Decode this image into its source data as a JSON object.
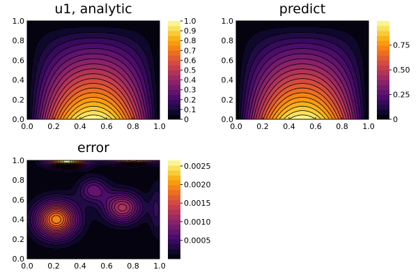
{
  "chart_data": [
    {
      "type": "heatmap",
      "id": "analytic",
      "title": "u1, analytic",
      "field": "analytic",
      "xlim": [
        0,
        1
      ],
      "ylim": [
        0,
        1
      ],
      "xticks": [
        "0.0",
        "0.2",
        "0.4",
        "0.6",
        "0.8",
        "1.0"
      ],
      "yticks": [
        "0.0",
        "0.2",
        "0.4",
        "0.6",
        "0.8",
        "1.0"
      ],
      "clim": [
        0,
        1
      ],
      "colorbar_ticks": [
        {
          "value": 0,
          "label": "0"
        },
        {
          "value": 0.1,
          "label": "0.1"
        },
        {
          "value": 0.2,
          "label": "0.2"
        },
        {
          "value": 0.3,
          "label": "0.3"
        },
        {
          "value": 0.4,
          "label": "0.4"
        },
        {
          "value": 0.5,
          "label": "0.5"
        },
        {
          "value": 0.6,
          "label": "0.6"
        },
        {
          "value": 0.7,
          "label": "0.7"
        },
        {
          "value": 0.8,
          "label": "0.8"
        },
        {
          "value": 0.9,
          "label": "0.9"
        },
        {
          "value": 1.0,
          "label": "1.0"
        }
      ],
      "levels": 20
    },
    {
      "type": "heatmap",
      "id": "predict",
      "title": "predict",
      "field": "predict",
      "xlim": [
        0,
        1
      ],
      "ylim": [
        0,
        1
      ],
      "xticks": [
        "0.0",
        "0.2",
        "0.4",
        "0.6",
        "0.8",
        "1.0"
      ],
      "yticks": [
        "0.0",
        "0.2",
        "0.4",
        "0.6",
        "0.8",
        "1.0"
      ],
      "clim": [
        0,
        0.995
      ],
      "colorbar_ticks": [
        {
          "value": 0,
          "label": "0"
        },
        {
          "value": 0.25,
          "label": "0.25"
        },
        {
          "value": 0.5,
          "label": "0.50"
        },
        {
          "value": 0.75,
          "label": "0.75"
        }
      ],
      "levels": 20
    },
    {
      "type": "heatmap",
      "id": "error",
      "title": "error",
      "field": "error",
      "xlim": [
        0,
        1
      ],
      "ylim": [
        0,
        1
      ],
      "xticks": [
        "0.0",
        "0.2",
        "0.4",
        "0.6",
        "0.8",
        "1.0"
      ],
      "yticks": [
        "0.0",
        "0.2",
        "0.4",
        "0.6",
        "0.8",
        "1.0"
      ],
      "clim": [
        0,
        0.00265
      ],
      "colorbar_ticks": [
        {
          "value": 0.0005,
          "label": "0.0005"
        },
        {
          "value": 0.001,
          "label": "0.0010"
        },
        {
          "value": 0.0015,
          "label": "0.0015"
        },
        {
          "value": 0.002,
          "label": "0.0020"
        },
        {
          "value": 0.0025,
          "label": "0.0025"
        }
      ],
      "levels": 20
    }
  ]
}
